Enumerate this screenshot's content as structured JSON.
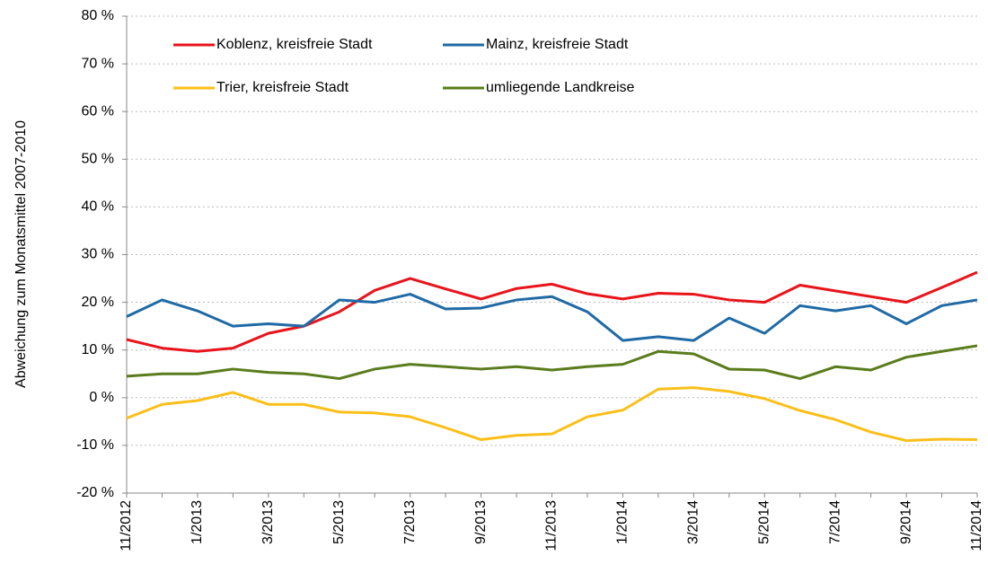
{
  "chart_data": {
    "type": "line",
    "y_axis_label": "Abweichung zum Monatsmittel 2007-2010",
    "categories": [
      "11/2012",
      null,
      "1/2013",
      null,
      "3/2013",
      null,
      "5/2013",
      null,
      "7/2013",
      null,
      "9/2013",
      null,
      "11/2013",
      null,
      "1/2014",
      null,
      "3/2014",
      null,
      "5/2014",
      null,
      "7/2014",
      null,
      "9/2014",
      null,
      "11/2014"
    ],
    "series": [
      {
        "name": "Koblenz, kreisfreie Stadt",
        "color": "#e8141b",
        "values": [
          12.2,
          10.4,
          9.7,
          10.4,
          13.5,
          15,
          18,
          22.5,
          25,
          22.8,
          20.7,
          22.9,
          23.8,
          21.8,
          20.7,
          21.9,
          21.7,
          20.5,
          20,
          23.6,
          22.4,
          21.2,
          20,
          23.1,
          26.3
        ]
      },
      {
        "name": "Mainz, kreisfreie Stadt",
        "color": "#1f6aa5",
        "values": [
          17,
          20.5,
          18.2,
          15,
          15.5,
          15,
          20.5,
          20,
          21.7,
          18.6,
          18.8,
          20.5,
          21.2,
          18,
          12,
          12.8,
          12,
          16.7,
          13.5,
          19.3,
          18.2,
          19.3,
          15.5,
          19.3,
          20.5
        ]
      },
      {
        "name": "Trier, kreisfreie Stadt",
        "color": "#fbbf1a",
        "values": [
          -4.3,
          -1.4,
          -0.6,
          1.1,
          -1.4,
          -1.4,
          -3,
          -3.2,
          -4,
          -6.3,
          -8.8,
          -7.9,
          -7.6,
          -4,
          -2.6,
          1.8,
          2.1,
          1.3,
          -0.2,
          -2.7,
          -4.6,
          -7.2,
          -9,
          -8.7,
          -8.8
        ]
      },
      {
        "name": "umliegende Landkreise",
        "color": "#5a7c1c",
        "values": [
          4.5,
          5,
          5,
          6,
          5.3,
          5,
          4,
          6,
          7,
          6.5,
          6,
          6.5,
          5.8,
          6.5,
          7,
          9.7,
          9.2,
          6,
          5.8,
          4,
          6.5,
          5.8,
          8.5,
          9.7,
          10.9
        ]
      }
    ],
    "ylim": [
      -20,
      80
    ],
    "yticks": [
      {
        "value": -20,
        "label": "-20 %"
      },
      {
        "value": -10,
        "label": "-10 %"
      },
      {
        "value": 0,
        "label": "0 %"
      },
      {
        "value": 10,
        "label": "10 %"
      },
      {
        "value": 20,
        "label": "20 %"
      },
      {
        "value": 30,
        "label": "30 %"
      },
      {
        "value": 40,
        "label": "40 %"
      },
      {
        "value": 50,
        "label": "50 %"
      },
      {
        "value": 60,
        "label": "60 %"
      },
      {
        "value": 70,
        "label": "70 %"
      },
      {
        "value": 80,
        "label": "80 %"
      }
    ],
    "grid": true,
    "legend": "top"
  }
}
